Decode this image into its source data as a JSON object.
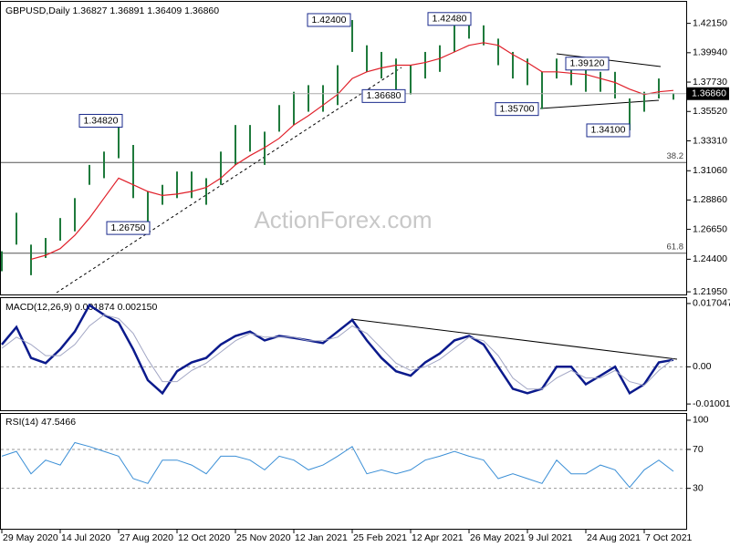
{
  "chart_data": [
    {
      "type": "ohlc",
      "header": "GBPUSD,Daily  1.36827 1.36891 1.36409 1.36860",
      "watermark": "ActionForex.com",
      "x": [
        0,
        8,
        16,
        24,
        32,
        40,
        48,
        56,
        64,
        72,
        80,
        88,
        96,
        104,
        112,
        120,
        128,
        136,
        144,
        152,
        160,
        168,
        176,
        184,
        192,
        200,
        208,
        216,
        224,
        232,
        240,
        248,
        256,
        264,
        272,
        280,
        288,
        296,
        304,
        312,
        320,
        328,
        336,
        344,
        352,
        360,
        368
      ],
      "high": [
        1.25,
        1.279,
        1.255,
        1.26,
        1.275,
        1.29,
        1.315,
        1.325,
        1.3482,
        1.33,
        1.295,
        1.3,
        1.31,
        1.31,
        1.305,
        1.325,
        1.345,
        1.345,
        1.34,
        1.36,
        1.37,
        1.375,
        1.375,
        1.39,
        1.424,
        1.405,
        1.4,
        1.395,
        1.39,
        1.4,
        1.405,
        1.42,
        1.4248,
        1.42,
        1.41,
        1.4,
        1.395,
        1.385,
        1.395,
        1.39,
        1.39,
        1.385,
        1.385,
        1.365,
        1.37,
        1.38,
        1.36891
      ],
      "low": [
        1.235,
        1.255,
        1.232,
        1.245,
        1.258,
        1.265,
        1.3,
        1.305,
        1.32,
        1.29,
        1.2675,
        1.285,
        1.29,
        1.29,
        1.285,
        1.3,
        1.315,
        1.325,
        1.315,
        1.34,
        1.345,
        1.355,
        1.355,
        1.36,
        1.4,
        1.385,
        1.38,
        1.37,
        1.368,
        1.38,
        1.385,
        1.4,
        1.41,
        1.405,
        1.39,
        1.38,
        1.375,
        1.357,
        1.38,
        1.375,
        1.37,
        1.37,
        1.365,
        1.341,
        1.355,
        1.365,
        1.36409
      ],
      "color": "#1f7a3c",
      "series": [
        {
          "color": "#e0202a",
          "values": [
            null,
            null,
            1.244,
            1.247,
            1.252,
            1.262,
            1.275,
            1.29,
            1.305,
            1.3,
            1.295,
            1.292,
            1.293,
            1.295,
            1.298,
            1.305,
            1.315,
            1.322,
            1.328,
            1.335,
            1.345,
            1.352,
            1.36,
            1.368,
            1.38,
            1.385,
            1.388,
            1.39,
            1.39,
            1.392,
            1.395,
            1.4,
            1.405,
            1.407,
            1.405,
            1.398,
            1.392,
            1.385,
            1.385,
            1.384,
            1.383,
            1.38,
            1.377,
            1.372,
            1.368,
            1.37,
            1.371
          ]
        }
      ],
      "xlim": [
        0,
        370
      ],
      "ylim": [
        1.2175,
        1.4377
      ],
      "yticks": [
        {
          "value": 1.4215,
          "label": "1.42150"
        },
        {
          "value": 1.3994,
          "label": "1.39940"
        },
        {
          "value": 1.3773,
          "label": "1.37730"
        },
        {
          "value": 1.3552,
          "label": "1.35520"
        },
        {
          "value": 1.3331,
          "label": "1.33310"
        },
        {
          "value": 1.3106,
          "label": "1.31060"
        },
        {
          "value": 1.2886,
          "label": "1.28860"
        },
        {
          "value": 1.2665,
          "label": "1.26650"
        },
        {
          "value": 1.244,
          "label": "1.24400"
        },
        {
          "value": 1.2195,
          "label": "1.21950"
        }
      ],
      "current": {
        "value": 1.3686,
        "label": "1.36860"
      },
      "fib_levels": [
        {
          "value": 1.3168,
          "label": "38.2"
        },
        {
          "value": 1.2485,
          "label": "61.8"
        }
      ],
      "annotations": [
        {
          "x": 191,
          "value": 1.424,
          "label": "1.42400"
        },
        {
          "x": 257,
          "value": 1.4248,
          "label": "1.42480"
        },
        {
          "x": 66,
          "value": 1.3482,
          "label": "1.34820"
        },
        {
          "x": 81,
          "value": 1.2675,
          "label": "1.26750"
        },
        {
          "x": 221,
          "value": 1.3668,
          "label": "1.36680"
        },
        {
          "x": 294,
          "value": 1.357,
          "label": "1.35700"
        },
        {
          "x": 309,
          "value": 1.3912,
          "label": "1.39120",
          "side": "right"
        },
        {
          "x": 344,
          "value": 1.341,
          "label": "1.34100"
        }
      ]
    },
    {
      "type": "line",
      "header": "MACD(12,26,9) 0.001874 0.002150",
      "x": [
        0,
        8,
        16,
        24,
        32,
        40,
        48,
        56,
        64,
        72,
        80,
        88,
        96,
        104,
        112,
        120,
        128,
        136,
        144,
        152,
        160,
        168,
        176,
        184,
        192,
        200,
        208,
        216,
        224,
        232,
        240,
        248,
        256,
        264,
        272,
        280,
        288,
        296,
        304,
        312,
        320,
        328,
        336,
        344,
        352,
        360,
        368
      ],
      "series": [
        {
          "color": "#0b1a8c",
          "width": 2.5,
          "values": [
            0.006,
            0.0107,
            0.0024,
            0.001,
            0.0047,
            0.0095,
            0.0166,
            0.014,
            0.0119,
            0.0047,
            -0.0036,
            -0.0071,
            -0.0012,
            0.0012,
            0.0024,
            0.006,
            0.0083,
            0.0095,
            0.0071,
            0.0083,
            0.0078,
            0.0071,
            0.0064,
            0.0095,
            0.0126,
            0.0071,
            0.0024,
            -0.0012,
            -0.0024,
            0.0012,
            0.0036,
            0.0071,
            0.0083,
            0.006,
            0,
            -0.0059,
            -0.0071,
            -0.0059,
            0,
            0,
            -0.0047,
            -0.0024,
            0,
            -0.0071,
            -0.0047,
            0.0012,
            0.001874
          ]
        },
        {
          "color": "#a2a6c4",
          "width": 1,
          "values": [
            0.005,
            0.008,
            0.006,
            0.003,
            0.003,
            0.006,
            0.011,
            0.014,
            0.013,
            0.009,
            0.002,
            -0.004,
            -0.004,
            -0.001,
            0.001,
            0.004,
            0.007,
            0.009,
            0.008,
            0.008,
            0.008,
            0.007,
            0.007,
            0.008,
            0.011,
            0.009,
            0.005,
            0.001,
            -0.001,
            0,
            0.002,
            0.005,
            0.008,
            0.007,
            0.003,
            -0.003,
            -0.006,
            -0.006,
            -0.003,
            -0.001,
            -0.003,
            -0.003,
            -0.001,
            -0.004,
            -0.005,
            -0.001,
            0.00215
          ]
        }
      ],
      "xlim": [
        0,
        370
      ],
      "ylim": [
        -0.0117,
        0.0185
      ],
      "yticks": [
        0.017047,
        {
          "value": 0,
          "label": "0.00"
        },
        -0.010013
      ],
      "levels": [
        0
      ]
    },
    {
      "type": "line",
      "header": "RSI(14) 47.5466",
      "x": [
        0,
        8,
        16,
        24,
        32,
        40,
        48,
        56,
        64,
        72,
        80,
        88,
        96,
        104,
        112,
        120,
        128,
        136,
        144,
        152,
        160,
        168,
        176,
        184,
        192,
        200,
        208,
        216,
        224,
        232,
        240,
        248,
        256,
        264,
        272,
        280,
        288,
        296,
        304,
        312,
        320,
        328,
        336,
        344,
        352,
        360,
        368
      ],
      "series": [
        {
          "color": "#3b8fd6",
          "width": 1,
          "values": [
            63,
            68,
            45,
            59,
            54,
            77,
            73,
            68,
            63,
            40,
            35,
            59,
            59,
            54,
            45,
            63,
            63,
            59,
            49,
            63,
            59,
            49,
            54,
            63,
            73,
            45,
            49,
            45,
            49,
            59,
            63,
            68,
            63,
            59,
            40,
            45,
            40,
            35,
            59,
            45,
            45,
            54,
            49,
            31,
            49,
            59,
            47.5466
          ]
        }
      ],
      "xlim": [
        0,
        370
      ],
      "ylim": [
        -11.5,
        106.5
      ],
      "yticks": [
        100,
        70,
        30
      ],
      "levels": [
        70,
        30
      ],
      "xticks": [
        {
          "value": 0,
          "label": "29 May 2020"
        },
        {
          "value": 32,
          "label": "14 Jul 2020"
        },
        {
          "value": 64,
          "label": "27 Aug 2020"
        },
        {
          "value": 96,
          "label": "12 Oct 2020"
        },
        {
          "value": 128,
          "label": "25 Nov 2020"
        },
        {
          "value": 160,
          "label": "12 Jan 2021"
        },
        {
          "value": 192,
          "label": "25 Feb 2021"
        },
        {
          "value": 224,
          "label": "12 Apr 2021"
        },
        {
          "value": 256,
          "label": "26 May 2021"
        },
        {
          "value": 288,
          "label": "9 Jul 2021"
        },
        {
          "value": 320,
          "label": "24 Aug 2021"
        },
        {
          "value": 352,
          "label": "7 Oct 2021"
        }
      ]
    }
  ]
}
